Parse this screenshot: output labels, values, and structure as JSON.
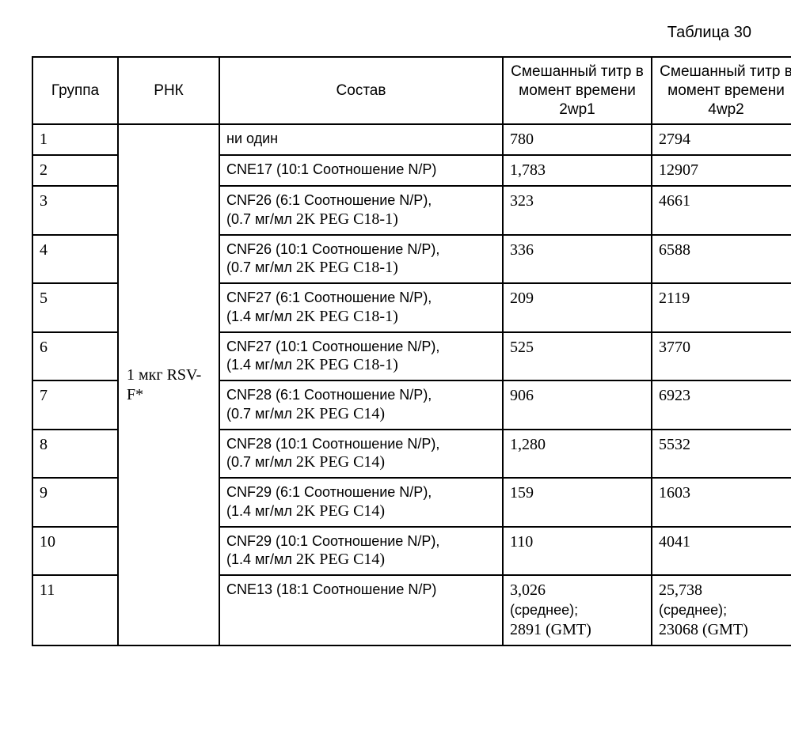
{
  "caption": "Таблица 30",
  "headers": {
    "group": "Группа",
    "rnk": "РНК",
    "comp": "Состав",
    "titer1": "Смешанный титр в момент времени 2wp1",
    "titer2": "Смешанный титр в момент времени 4wp2"
  },
  "rnk_merged": "1 мкг RSV-F*",
  "rows": [
    {
      "g": "1",
      "comp_a": "ни один",
      "comp_b": "",
      "t1": "780",
      "t2": "2794"
    },
    {
      "g": "2",
      "comp_a": "CNE17 (10:1 Соотношение N/P)",
      "comp_b": "",
      "t1": "1,783",
      "t2": "12907"
    },
    {
      "g": "3",
      "comp_a": "CNF26 (6:1 Соотношение N/P),",
      "comp_b_pre": "(0.7 мг/мл",
      "comp_b_peg": "   2K PEG C18-1)",
      "t1": "323",
      "t2": "4661"
    },
    {
      "g": "4",
      "comp_a": "CNF26 (10:1 Соотношение N/P),",
      "comp_b_pre": "(0.7 мг/мл",
      "comp_b_peg": "   2K PEG C18-1)",
      "t1": "336",
      "t2": "6588"
    },
    {
      "g": "5",
      "comp_a": "CNF27 (6:1 Соотношение N/P),",
      "comp_b_pre": "(1.4  мг/мл",
      "comp_b_peg": "   2K PEG C18-1)",
      "t1": "209",
      "t2": "2119"
    },
    {
      "g": "6",
      "comp_a": "CNF27 (10:1 Соотношение N/P),",
      "comp_b_pre": "(1.4  мг/мл",
      "comp_b_peg": "   2K PEG C18-1)",
      "t1": "525",
      "t2": "3770"
    },
    {
      "g": "7",
      "comp_a": "CNF28 (6:1 Соотношение N/P),",
      "comp_b_pre": "(0.7  мг/мл",
      "comp_b_peg": "   2K PEG C14)",
      "t1": "906",
      "t2": "6923"
    },
    {
      "g": "8",
      "comp_a": "CNF28 (10:1 Соотношение N/P),",
      "comp_b_pre": "(0.7  мг/мл",
      "comp_b_peg": "   2K PEG C14)",
      "t1": "1,280",
      "t2": "5532"
    },
    {
      "g": "9",
      "comp_a": "CNF29 (6:1 Соотношение N/P),",
      "comp_b_pre": "(1.4  мг/мл",
      "comp_b_peg": "    2K PEG C14)",
      "t1": "159",
      "t2": "1603"
    },
    {
      "g": "10",
      "comp_a": "CNF29 (10:1 Соотношение N/P),",
      "comp_b_pre": "(1.4 мг/мл",
      "comp_b_peg": "    2K PEG C14)",
      "t1": "110",
      "t2": "4041"
    },
    {
      "g": "11",
      "comp_a": "CNE13 (18:1 Соотношение N/P)",
      "comp_b": "",
      "t1_val": "3,026",
      "t1_note": "(среднее);",
      "t1_gmt": "2891 (GMT)",
      "t2_val": "25,738",
      "t2_note": "(среднее);",
      "t2_gmt": "23068 (GMT)"
    }
  ]
}
